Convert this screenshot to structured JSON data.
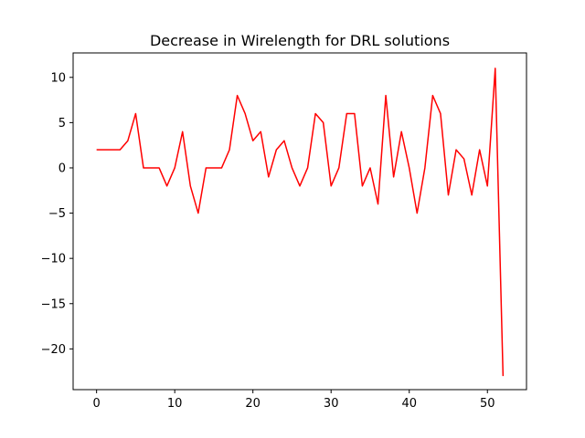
{
  "chart_data": {
    "type": "line",
    "title": "Decrease in Wirelength for DRL solutions",
    "xlabel": "",
    "ylabel": "",
    "xlim": [
      -3,
      55
    ],
    "ylim": [
      -24.5,
      12.7
    ],
    "x_ticks": [
      0,
      10,
      20,
      30,
      40,
      50
    ],
    "x_tick_labels": [
      "0",
      "10",
      "20",
      "30",
      "40",
      "50"
    ],
    "y_ticks": [
      10,
      5,
      0,
      -5,
      -10,
      -15,
      -20
    ],
    "y_tick_labels": [
      "10",
      "5",
      "0",
      "−5",
      "−10",
      "−15",
      "−20"
    ],
    "grid": false,
    "series": [
      {
        "color": "#ff0000",
        "x": [
          0,
          1,
          2,
          3,
          4,
          5,
          6,
          7,
          8,
          9,
          10,
          11,
          12,
          13,
          14,
          15,
          16,
          17,
          18,
          19,
          20,
          21,
          22,
          23,
          24,
          25,
          26,
          27,
          28,
          29,
          30,
          31,
          32,
          33,
          34,
          35,
          36,
          37,
          38,
          39,
          40,
          41,
          42,
          43,
          44,
          45,
          46,
          47,
          48,
          49,
          50,
          51,
          52
        ],
        "values": [
          2,
          2,
          2,
          2,
          3,
          6,
          0,
          0,
          0,
          -2,
          0,
          4,
          -2,
          -5,
          0,
          0,
          0,
          2,
          8,
          6,
          3,
          4,
          -1,
          2,
          3,
          0,
          -2,
          0,
          6,
          5,
          -2,
          0,
          6,
          6,
          -2,
          0,
          -4,
          8,
          -1,
          4,
          0,
          -5,
          0,
          8,
          6,
          -3,
          2,
          1,
          -3,
          2,
          -2,
          11,
          -23
        ]
      }
    ]
  }
}
